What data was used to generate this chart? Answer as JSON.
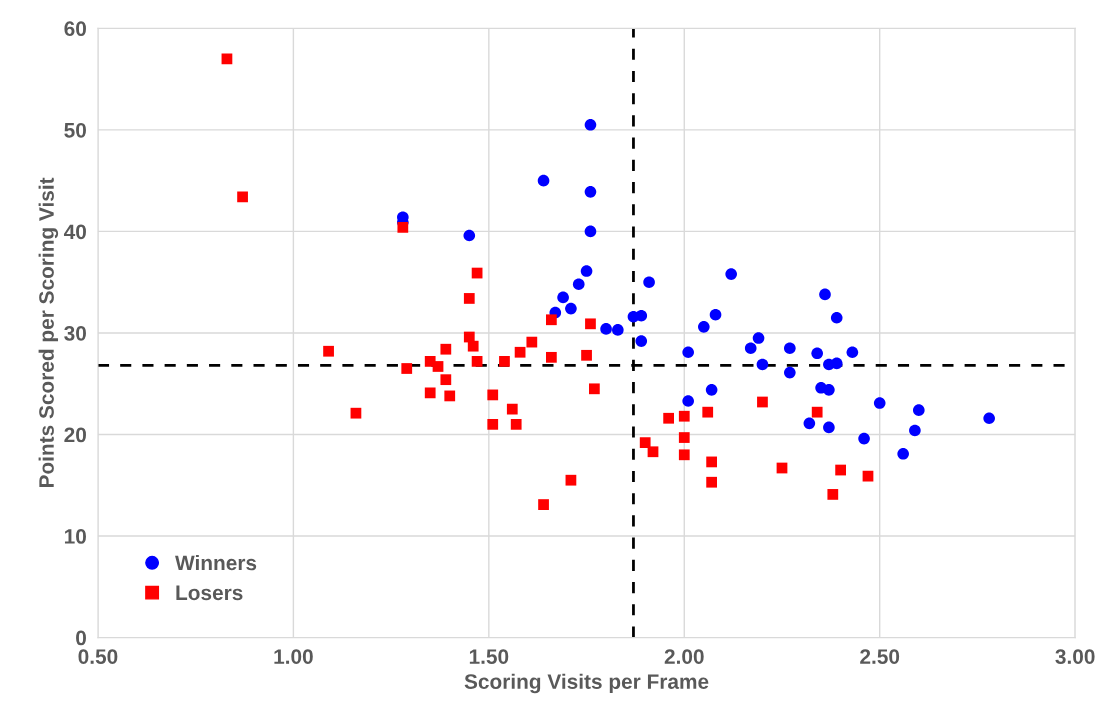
{
  "chart_data": {
    "type": "scatter",
    "xlabel": "Scoring Visits per Frame",
    "ylabel": "Points Scored per Scoring Visit",
    "xlim": [
      0.5,
      3.0
    ],
    "ylim": [
      0,
      60
    ],
    "xticks": [
      {
        "value": 0.5,
        "label": "0.50"
      },
      {
        "value": 1.0,
        "label": "1.00"
      },
      {
        "value": 1.5,
        "label": "1.50"
      },
      {
        "value": 2.0,
        "label": "2.00"
      },
      {
        "value": 2.5,
        "label": "2.50"
      },
      {
        "value": 3.0,
        "label": "3.00"
      }
    ],
    "yticks": [
      0,
      10,
      20,
      30,
      40,
      50,
      60
    ],
    "grid": true,
    "legend": "bottom left",
    "ref_lines": [
      {
        "axis": "x",
        "value": 1.87,
        "color": "#000000",
        "line_style": "dashed"
      },
      {
        "axis": "y",
        "value": 26.8,
        "color": "#000000",
        "line_style": "dashed"
      }
    ],
    "series": [
      {
        "name": "Winners",
        "color": "#0000ff",
        "marker": "circle",
        "x": [
          1.28,
          1.28,
          1.45,
          1.64,
          1.76,
          1.76,
          1.76,
          1.75,
          1.73,
          1.69,
          1.71,
          1.67,
          1.8,
          1.83,
          1.87,
          1.89,
          1.89,
          1.91,
          2.01,
          2.05,
          2.08,
          2.12,
          2.17,
          2.19,
          2.2,
          2.27,
          2.27,
          2.34,
          2.36,
          2.39,
          2.43,
          2.37,
          2.39,
          2.35,
          2.37,
          2.01,
          2.07,
          2.32,
          2.37,
          2.46,
          2.5,
          2.6,
          2.59,
          2.56,
          2.78
        ],
        "values": [
          41.4,
          40.9,
          39.6,
          45.0,
          50.5,
          43.9,
          40.0,
          36.1,
          34.8,
          33.5,
          32.4,
          32.0,
          30.4,
          30.3,
          31.6,
          31.7,
          29.2,
          35.0,
          28.1,
          30.6,
          31.8,
          35.8,
          28.5,
          29.5,
          26.9,
          28.5,
          26.1,
          28.0,
          33.8,
          31.5,
          28.1,
          26.9,
          27.0,
          24.6,
          24.4,
          23.3,
          24.4,
          21.1,
          20.7,
          19.6,
          23.1,
          22.4,
          20.4,
          18.1,
          21.6
        ]
      },
      {
        "name": "Losers",
        "color": "#ff0000",
        "marker": "square",
        "x": [
          0.83,
          0.87,
          1.28,
          1.47,
          1.45,
          1.45,
          1.46,
          1.47,
          1.09,
          1.16,
          1.29,
          1.35,
          1.37,
          1.39,
          1.39,
          1.35,
          1.4,
          1.51,
          1.54,
          1.51,
          1.56,
          1.57,
          1.58,
          1.61,
          1.66,
          1.66,
          1.76,
          1.75,
          1.77,
          1.71,
          1.64,
          1.9,
          1.92,
          1.96,
          2.0,
          2.0,
          2.0,
          2.06,
          2.07,
          2.07,
          2.2,
          2.25,
          2.34,
          2.38,
          2.4,
          2.47
        ],
        "values": [
          57.0,
          43.4,
          40.4,
          35.9,
          33.4,
          29.6,
          28.7,
          27.2,
          28.2,
          22.1,
          26.5,
          27.2,
          26.7,
          28.4,
          25.4,
          24.1,
          23.8,
          23.9,
          27.2,
          21.0,
          22.5,
          21.0,
          28.1,
          29.1,
          31.3,
          27.6,
          30.9,
          27.8,
          24.5,
          15.5,
          13.1,
          19.2,
          18.3,
          21.6,
          21.8,
          19.7,
          18.0,
          22.2,
          17.3,
          15.3,
          23.2,
          16.7,
          22.2,
          14.1,
          16.5,
          15.9
        ]
      }
    ]
  }
}
